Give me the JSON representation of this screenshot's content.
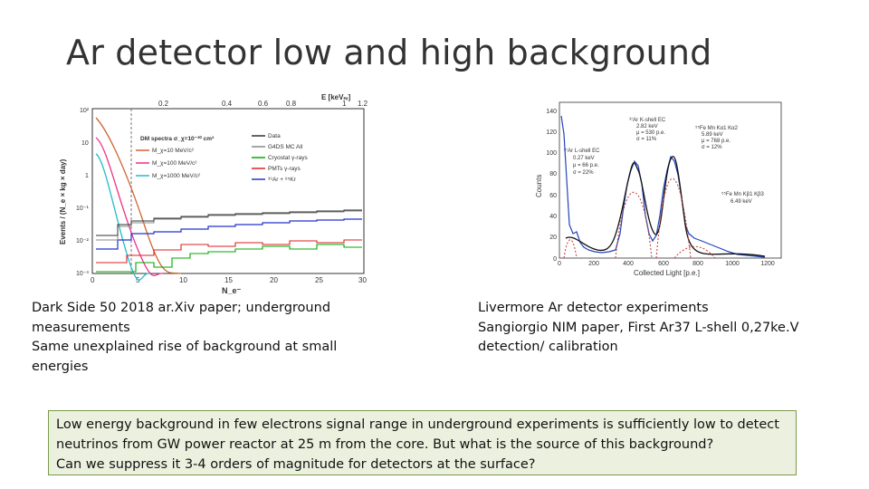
{
  "slide": {
    "title": "Ar detector low and high background",
    "left_caption": [
      "Dark Side 50  2018 ar.Xiv paper; underground",
      "measurements",
      "Same unexplained rise of background at small",
      "energies"
    ],
    "right_caption": [
      "Livermore Ar detector experiments",
      "Sangiorgio NIM paper, First  Ar37  L-shell  0,27ke.V",
      "detection/ calibration"
    ],
    "note": [
      "Low energy background in  few electrons signal range in underground experiments is sufficiently low to detect",
      "neutrinos from GW power reactor at 25 m from the core.  But what is the source of this background?",
      "Can we suppress it 3-4 orders of magnitude for detectors at the surface?"
    ]
  },
  "left_plot": {
    "top_axis_label": "E [keVₙᵣ]",
    "top_ticks": [
      "0.2",
      "0.4",
      "0.6",
      "0.8",
      "1",
      "1.2"
    ],
    "ylabel": "Events / (N_e × kg × day)",
    "xlabel": "N_e⁻",
    "x_ticks": [
      "0",
      "5",
      "10",
      "15",
      "20",
      "25",
      "30"
    ],
    "y_ticks": [
      "10²",
      "10",
      "1",
      "10⁻¹",
      "10⁻²",
      "10⁻³"
    ],
    "legend_title": "DM spectra σ_χ=10⁻³⁰ cm²",
    "legend_left": [
      "M_χ=10 MeV/c²",
      "M_χ=100 MeV/c²",
      "M_χ=1000 MeV/c²"
    ],
    "legend_right": [
      "Data",
      "G4DS MC All",
      "Cryostat γ-rays",
      "PMTs γ-rays",
      "³⁹Ar + ⁸⁵Kr"
    ],
    "colors": {
      "data": "#333333",
      "mc": "#888888",
      "cryostat": "#00aa00",
      "pmts": "#dd2222",
      "ar": "#2233cc",
      "m10": "#cc6633",
      "m100": "#ee3388",
      "m1000": "#22bbcc"
    }
  },
  "right_plot": {
    "ylabel": "Counts",
    "xlabel": "Collected Light [p.e.]",
    "x_ticks": [
      "0",
      "200",
      "400",
      "600",
      "800",
      "1000",
      "1200"
    ],
    "y_ticks": [
      "0",
      "20",
      "40",
      "60",
      "80",
      "100",
      "120",
      "140"
    ],
    "annotations": {
      "ar_k": [
        "³⁷Ar K-shell EC",
        "2.82 keV",
        "μ = 530 p.e.",
        "σ = 11%"
      ],
      "fe_k": [
        "⁵⁵Fe Mn Kα1 Kα2",
        "5.89 keV",
        "μ = 768 p.e.",
        "σ = 12%"
      ],
      "ar_l": [
        "³⁷Ar L-shell EC",
        "0.27 keV",
        "μ = 66 p.e.",
        "σ = 22%"
      ],
      "fe_kb": [
        "⁵⁵Fe Mn Kβ1 Kβ3",
        "6.49 keV"
      ]
    }
  }
}
